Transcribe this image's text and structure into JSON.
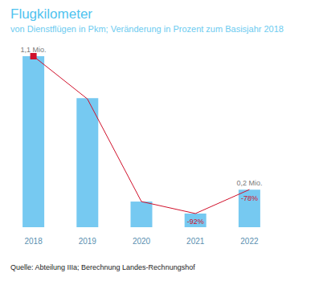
{
  "chart_data": {
    "type": "bar",
    "title": "Flugkilometer",
    "subtitle": "von Dienstflügen in Pkm; Veränderung in Prozent zum Basisjahr 2018",
    "source": "Quelle: Abteilung IIIa; Berechnung Landes-Rechnungshof",
    "categories": [
      "2018",
      "2019",
      "2020",
      "2021",
      "2022"
    ],
    "series": [
      {
        "name": "Flugkilometer",
        "type": "bar",
        "color": "#76c9f1",
        "values": [
          1100000,
          830000,
          165000,
          88000,
          242000
        ],
        "value_labels": [
          "1,1 Mio.",
          null,
          null,
          null,
          "0,2 Mio."
        ]
      },
      {
        "name": "Veränderung",
        "type": "line",
        "axis": "y2",
        "color": "#d0112b",
        "values": [
          0,
          -25,
          -85,
          -92,
          -78
        ],
        "value_labels": [
          null,
          null,
          null,
          "-92%",
          "-78%"
        ]
      }
    ],
    "ylim": [
      0,
      1100000
    ],
    "y2lim": [
      -100,
      0
    ],
    "tick_labels": "x",
    "grid": false,
    "data_labels": true
  }
}
